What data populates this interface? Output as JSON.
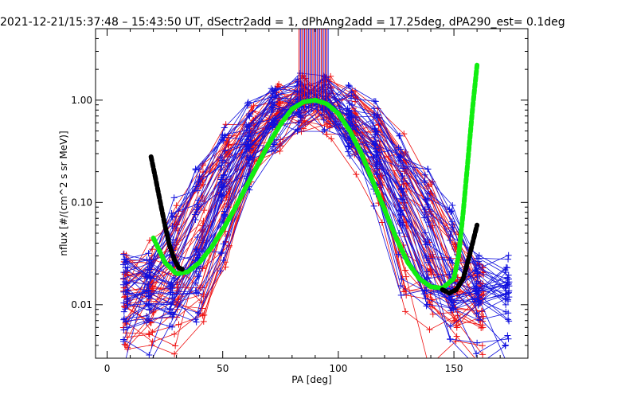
{
  "chart_data": {
    "type": "line",
    "title": "2021-12-21/15:37:48 – 15:43:50 UT, dSectr2add = 1, dPhAng2add = 17.25deg, dPA290_est=   0.1deg",
    "xlabel": "PA [deg]",
    "ylabel": "nflux [#/(cm^2 s sr MeV)]",
    "xlim": [
      -5,
      182
    ],
    "ylim": [
      0.003,
      5.0
    ],
    "yscale": "log",
    "x_ticks": [
      0,
      50,
      100,
      150
    ],
    "y_ticks": [
      0.01,
      0.1,
      1.0
    ],
    "x_tick_labels": [
      "0",
      "50",
      "100",
      "150"
    ],
    "y_tick_labels": [
      "0.01",
      "0.10",
      "1.00"
    ],
    "grid": false,
    "colors": {
      "red_series": "#ee1111",
      "blue_series": "#1111dd",
      "fit_green": "#11ee11",
      "fit_black": "#000000"
    },
    "series": [
      {
        "color": "#11ee11",
        "style": "thick-dashed",
        "x": [
          20,
          25,
          30,
          35,
          40,
          45,
          50,
          55,
          60,
          65,
          70,
          75,
          80,
          85,
          90,
          95,
          100,
          105,
          110,
          115,
          120,
          125,
          130,
          135,
          140,
          145,
          150,
          152,
          154,
          156,
          158,
          160
        ],
        "y": [
          0.045,
          0.026,
          0.02,
          0.021,
          0.026,
          0.036,
          0.054,
          0.085,
          0.14,
          0.23,
          0.38,
          0.58,
          0.82,
          0.96,
          1.0,
          0.92,
          0.74,
          0.5,
          0.3,
          0.16,
          0.085,
          0.045,
          0.026,
          0.018,
          0.015,
          0.0145,
          0.018,
          0.03,
          0.08,
          0.25,
          0.8,
          2.2
        ]
      },
      {
        "color": "#000000",
        "style": "thick-dashed",
        "x": [
          19,
          21,
          23,
          25,
          27,
          29,
          31,
          33
        ],
        "y": [
          0.28,
          0.17,
          0.1,
          0.06,
          0.038,
          0.028,
          0.023,
          0.022
        ]
      },
      {
        "color": "#000000",
        "style": "thick-dashed",
        "x": [
          145,
          148,
          151,
          154,
          157,
          160
        ],
        "y": [
          0.014,
          0.013,
          0.014,
          0.018,
          0.032,
          0.06
        ]
      }
    ]
  }
}
